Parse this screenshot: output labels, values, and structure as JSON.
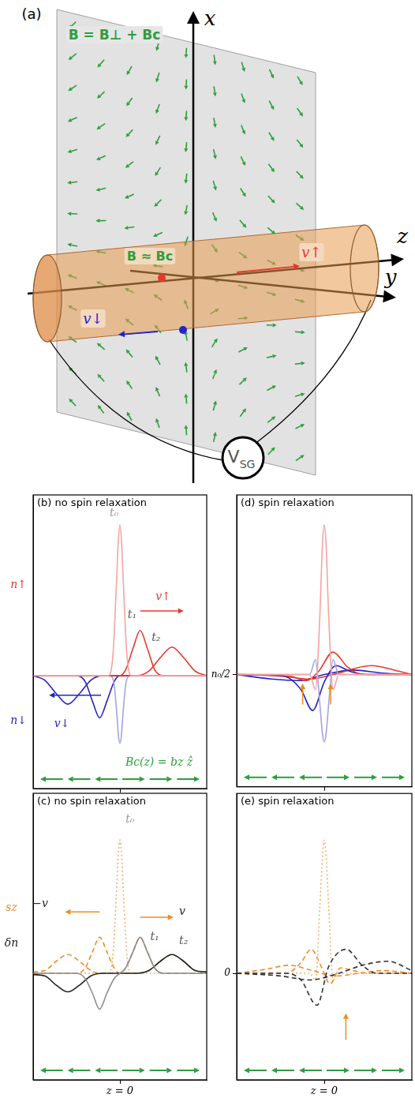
{
  "panel_a": {
    "label": "(a)",
    "axis_x": "x",
    "axis_z": "z",
    "axis_y": "y",
    "field_outside": "B = B⊥ + Bc",
    "field_inside": "B ≈ Bc",
    "velocity_up": "v↑",
    "velocity_down": "v↓",
    "gate": "VSG"
  },
  "chart_data": [
    {
      "type": "line",
      "title": "(b) no spin relaxation",
      "xlim": [
        -3,
        3
      ],
      "ylim": [
        -0.25,
        1.7
      ],
      "xticks": [
        0
      ],
      "yticks": [],
      "tick_labels": false,
      "grid": false,
      "series": [
        {
          "color": "#f5a3a0",
          "line_style": "solid",
          "x": [
            -3,
            -0.4,
            -0.24,
            -0.12,
            -0.06,
            0,
            0.06,
            0.12,
            0.24,
            0.4,
            3
          ],
          "values": [
            0.5,
            0.5,
            0.64,
            1.11,
            1.38,
            1.5,
            1.38,
            1.11,
            0.64,
            0.5,
            0.5
          ]
        },
        {
          "color": "#e8372c",
          "line_style": "solid",
          "x": [
            -3,
            0,
            0.2,
            0.45,
            0.7,
            0.95,
            1.2,
            1.5,
            3
          ],
          "values": [
            0.5,
            0.5,
            0.54,
            0.68,
            0.8,
            0.68,
            0.54,
            0.5,
            0.5
          ]
        },
        {
          "color": "#e8372c",
          "line_style": "solid",
          "x": [
            -3,
            0.6,
            1.0,
            1.4,
            1.8,
            2.2,
            2.6,
            3
          ],
          "values": [
            0.5,
            0.5,
            0.53,
            0.62,
            0.69,
            0.62,
            0.53,
            0.5
          ]
        },
        {
          "color": "#a3a3e6",
          "line_style": "solid",
          "x": [
            -3,
            -0.35,
            -0.2,
            -0.1,
            -0.05,
            0,
            0.05,
            0.1,
            0.2,
            0.35,
            3
          ],
          "values": [
            0.5,
            0.5,
            0.44,
            0.23,
            0.1,
            0.05,
            0.1,
            0.23,
            0.44,
            0.5,
            0.5
          ]
        },
        {
          "color": "#2424c8",
          "line_style": "solid",
          "x": [
            -3,
            -1.5,
            -1.2,
            -0.95,
            -0.7,
            -0.45,
            -0.2,
            0,
            3
          ],
          "values": [
            0.5,
            0.5,
            0.46,
            0.33,
            0.22,
            0.33,
            0.46,
            0.5,
            0.5
          ]
        },
        {
          "color": "#2424c8",
          "line_style": "solid",
          "x": [
            -3,
            -2.6,
            -2.2,
            -1.8,
            -1.4,
            -1.0,
            -0.6,
            3
          ],
          "values": [
            0.5,
            0.47,
            0.38,
            0.31,
            0.38,
            0.47,
            0.5,
            0.5
          ]
        }
      ],
      "annotations": [
        {
          "text": "n↑",
          "x": -3.5,
          "y": 1.1,
          "color": "#e8372c"
        },
        {
          "text": "n↓",
          "x": -3.5,
          "y": 0.2,
          "color": "#2424c8"
        },
        {
          "text": "t₀",
          "x": -0.2,
          "y": 1.58,
          "color": "#999999"
        },
        {
          "text": "t₁",
          "x": 0.42,
          "y": 0.9,
          "color": "#555555"
        },
        {
          "text": "t₂",
          "x": 1.25,
          "y": 0.75,
          "color": "#555555"
        },
        {
          "text": "v↑",
          "x": 1.5,
          "y": 1.02,
          "color": "#e8372c"
        },
        {
          "from": [
            0.7,
            0.93
          ],
          "to": [
            2.2,
            0.93
          ],
          "color": "#e8372c"
        },
        {
          "text": "v↓",
          "x": -2.0,
          "y": 0.18,
          "color": "#2424c8"
        },
        {
          "from": [
            -0.65,
            0.37
          ],
          "to": [
            -2.45,
            0.37
          ],
          "color": "#2424c8"
        },
        {
          "text": "Bc(z) = bz ẑ",
          "x": 1.35,
          "y": -0.08,
          "color": "#2e9e3e"
        }
      ]
    },
    {
      "type": "line",
      "title": "(c) no spin relaxation",
      "xlim": [
        -3,
        3
      ],
      "ylim": [
        -0.8,
        1.35
      ],
      "xticks": [
        {
          "value": 0,
          "label": "z = 0"
        }
      ],
      "yticks": [],
      "tick_labels": "x",
      "grid": false,
      "series": [
        {
          "color": "#8c8c8c",
          "line_style": "solid",
          "x": [
            -3,
            -1.5,
            -1.2,
            -0.95,
            -0.7,
            -0.45,
            -0.2,
            0,
            0.2,
            0.45,
            0.7,
            0.95,
            1.2,
            1.5,
            3
          ],
          "values": [
            0,
            0,
            -0.04,
            -0.15,
            -0.27,
            -0.15,
            -0.04,
            0,
            0.04,
            0.16,
            0.27,
            0.16,
            0.04,
            0,
            0
          ]
        },
        {
          "color": "#222222",
          "line_style": "solid",
          "x": [
            -3,
            -2.6,
            -2.2,
            -1.8,
            -1.4,
            -1.0,
            -0.6,
            0,
            0.6,
            1.0,
            1.4,
            1.8,
            2.2,
            2.6,
            3
          ],
          "values": [
            -0.01,
            -0.02,
            -0.09,
            -0.14,
            -0.09,
            -0.02,
            0,
            0,
            0,
            0.02,
            0.09,
            0.14,
            0.09,
            0.02,
            0.01
          ]
        },
        {
          "color": "#f5b070",
          "line_style": "dotted",
          "x": [
            -3,
            -0.4,
            -0.24,
            -0.12,
            -0.06,
            0,
            0.06,
            0.12,
            0.24,
            0.4,
            3
          ],
          "values": [
            0,
            0,
            0.14,
            0.61,
            0.88,
            1.0,
            0.88,
            0.61,
            0.14,
            0,
            0
          ]
        },
        {
          "color": "#f08a24",
          "line_style": "dashed",
          "x": [
            -3,
            -1.5,
            -1.2,
            -0.95,
            -0.7,
            -0.45,
            -0.2,
            0,
            0.2,
            0.45,
            0.7,
            0.95,
            1.2,
            1.5,
            3
          ],
          "values": [
            0,
            0,
            0.04,
            0.16,
            0.27,
            0.16,
            0.04,
            0,
            0.04,
            0.16,
            0.27,
            0.16,
            0.04,
            0,
            0
          ]
        },
        {
          "color": "#f08a24",
          "line_style": "dashed",
          "x": [
            -3,
            -2.6,
            -2.2,
            -1.8,
            -1.4,
            -1.0,
            -0.6,
            0,
            0.6,
            1.0,
            1.4,
            1.8,
            2.2,
            2.6,
            3
          ],
          "values": [
            0.01,
            0.02,
            0.09,
            0.14,
            0.09,
            0.02,
            0,
            0,
            0,
            0.02,
            0.09,
            0.14,
            0.09,
            0.02,
            0.01
          ]
        }
      ],
      "annotations": [
        {
          "text": "sz",
          "x": -3.75,
          "y": 0.49,
          "color": "#f08a24"
        },
        {
          "text": "δn",
          "x": -3.75,
          "y": 0.22,
          "color": "#222222"
        },
        {
          "text": "t₀",
          "x": 0.35,
          "y": 1.15,
          "color": "#999999"
        },
        {
          "text": "t₁",
          "x": 1.2,
          "y": 0.27,
          "color": "#555555"
        },
        {
          "text": "t₂",
          "x": 2.2,
          "y": 0.24,
          "color": "#555555"
        },
        {
          "from": [
            0.7,
            0.42
          ],
          "to": [
            1.85,
            0.42
          ],
          "color": "#f08a24"
        },
        {
          "text": "v",
          "x": 2.15,
          "y": 0.46,
          "color": "#222222"
        },
        {
          "from": [
            -0.7,
            0.46
          ],
          "to": [
            -1.9,
            0.46
          ],
          "color": "#f08a24"
        },
        {
          "text": "−v",
          "x": -2.75,
          "y": 0.52,
          "color": "#222222"
        }
      ]
    },
    {
      "type": "line",
      "title": "(d) spin relaxation",
      "xlim": [
        -3,
        3
      ],
      "ylim": [
        -0.25,
        1.7
      ],
      "xticks": [
        0
      ],
      "yticks": [
        {
          "value": 0.5,
          "label": "n₀/2"
        }
      ],
      "tick_labels": "y",
      "grid": false,
      "series": [
        {
          "color": "#f5a3a0",
          "line_style": "solid",
          "x": [
            -3,
            -0.5,
            -0.3,
            -0.15,
            -0.06,
            0,
            0.06,
            0.15,
            0.3,
            0.5,
            3
          ],
          "values": [
            0.5,
            0.5,
            0.4,
            0.9,
            1.38,
            1.5,
            1.38,
            0.9,
            0.4,
            0.5,
            0.5
          ]
        },
        {
          "color": "#a3a3e6",
          "line_style": "solid",
          "x": [
            -3,
            -0.5,
            -0.3,
            -0.15,
            -0.06,
            0,
            0.06,
            0.15,
            0.3,
            0.5,
            3
          ],
          "values": [
            0.5,
            0.5,
            0.6,
            0.3,
            0.1,
            0.05,
            0.1,
            0.3,
            0.6,
            0.5,
            0.5
          ]
        },
        {
          "color": "#e8372c",
          "line_style": "solid",
          "x": [
            -3,
            -1.2,
            -0.6,
            -0.2,
            0.3,
            0.8,
            1.3,
            3
          ],
          "values": [
            0.5,
            0.49,
            0.46,
            0.52,
            0.65,
            0.55,
            0.5,
            0.5
          ]
        },
        {
          "color": "#2424c8",
          "line_style": "solid",
          "x": [
            -3,
            -1.4,
            -0.8,
            -0.4,
            0,
            0.4,
            0.9,
            1.5,
            3
          ],
          "values": [
            0.5,
            0.49,
            0.4,
            0.26,
            0.45,
            0.56,
            0.52,
            0.5,
            0.5
          ]
        },
        {
          "color": "#e8372c",
          "line_style": "solid",
          "x": [
            -3,
            -1.5,
            -0.5,
            0.3,
            1.6,
            2.6,
            3
          ],
          "values": [
            0.5,
            0.49,
            0.47,
            0.5,
            0.56,
            0.52,
            0.5
          ]
        },
        {
          "color": "#2424c8",
          "line_style": "solid",
          "x": [
            -3,
            -1.8,
            -0.8,
            0,
            1,
            2,
            3
          ],
          "values": [
            0.5,
            0.47,
            0.46,
            0.5,
            0.53,
            0.51,
            0.5
          ]
        }
      ],
      "annotations": [
        {
          "from": [
            -0.74,
            0.3
          ],
          "to": [
            -0.74,
            0.44
          ],
          "color": "#f08a24"
        },
        {
          "from": [
            0.22,
            0.3
          ],
          "to": [
            0.22,
            0.44
          ],
          "color": "#f08a24"
        }
      ]
    },
    {
      "type": "line",
      "title": "(e) spin relaxation",
      "xlim": [
        -3,
        3
      ],
      "ylim": [
        -0.8,
        1.35
      ],
      "xticks": [
        {
          "value": 0,
          "label": "z = 0"
        }
      ],
      "yticks": [
        0
      ],
      "tick_labels": true,
      "grid": false,
      "series": [
        {
          "color": "#333333",
          "line_style": "dashed",
          "x": [
            -3,
            -1.3,
            -0.8,
            -0.25,
            0.15,
            0.75,
            1.3,
            1.8,
            3
          ],
          "values": [
            0,
            0,
            -0.05,
            -0.24,
            0.05,
            0.18,
            0.06,
            0,
            0
          ]
        },
        {
          "color": "#333333",
          "line_style": "dashed",
          "x": [
            -3,
            -1.5,
            -0.5,
            0.5,
            1.3,
            2.2,
            3
          ],
          "values": [
            0,
            -0.02,
            -0.05,
            0,
            0.06,
            0.09,
            0.02
          ]
        },
        {
          "color": "#f5b070",
          "line_style": "dotted",
          "x": [
            -3,
            -0.5,
            -0.3,
            -0.15,
            -0.06,
            0,
            0.06,
            0.15,
            0.3,
            0.5,
            3
          ],
          "values": [
            0,
            0,
            -0.05,
            0.5,
            0.88,
            1.0,
            0.88,
            0.5,
            -0.05,
            0,
            0
          ]
        },
        {
          "color": "#f08a24",
          "line_style": "dashed",
          "x": [
            -3,
            -1.3,
            -0.8,
            -0.45,
            -0.1,
            0.2,
            0.55,
            1.0,
            1.5,
            3
          ],
          "values": [
            0,
            0,
            0.08,
            0.18,
            0.05,
            -0.08,
            0.04,
            0.02,
            0,
            0
          ]
        },
        {
          "color": "#f08a24",
          "line_style": "dashed",
          "x": [
            -3,
            -2,
            -1.2,
            -0.4,
            0.4,
            1.2,
            2,
            3
          ],
          "values": [
            0,
            0.03,
            0.06,
            0.02,
            -0.02,
            0,
            0.02,
            0
          ]
        }
      ],
      "annotations": [
        {
          "from": [
            0.74,
            -0.5
          ],
          "to": [
            0.74,
            -0.3
          ],
          "color": "#f08a24"
        }
      ]
    }
  ]
}
